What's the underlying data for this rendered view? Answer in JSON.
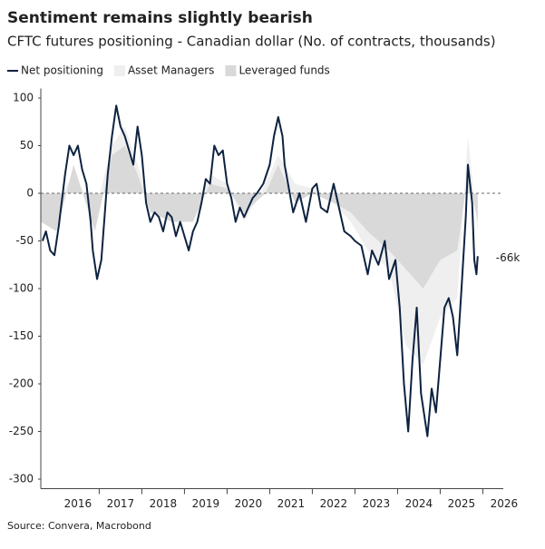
{
  "chart_data": {
    "type": "line",
    "title": "Sentiment remains slightly bearish",
    "subtitle": "CFTC futures positioning - Canadian dollar (No. of contracts, thousands)",
    "source": "Source: Convera, Macrobond",
    "annotation": {
      "text": "-66k",
      "x": 2025.88,
      "y": -66
    },
    "reference_line": 0,
    "xlim": [
      2015.63,
      2026.48
    ],
    "ylim": [
      -310,
      110
    ],
    "yticks": [
      100,
      50,
      0,
      -50,
      -100,
      -150,
      -200,
      -250,
      -300
    ],
    "xticks": [
      {
        "value": 2016.5,
        "label": "2016"
      },
      {
        "value": 2017.5,
        "label": "2017"
      },
      {
        "value": 2018.5,
        "label": "2018"
      },
      {
        "value": 2019.5,
        "label": "2019"
      },
      {
        "value": 2020.5,
        "label": "2020"
      },
      {
        "value": 2021.5,
        "label": "2021"
      },
      {
        "value": 2022.5,
        "label": "2022"
      },
      {
        "value": 2023.5,
        "label": "2023"
      },
      {
        "value": 2024.5,
        "label": "2024"
      },
      {
        "value": 2025.5,
        "label": "2025"
      },
      {
        "value": 2026.5,
        "label": "2026"
      }
    ],
    "series": [
      {
        "name": "Asset Managers",
        "kind": "area",
        "color": "#efefef",
        "x": [
          2015.63,
          2016.0,
          2016.4,
          2016.9,
          2017.3,
          2017.6,
          2017.9,
          2018.2,
          2018.7,
          2019.2,
          2019.6,
          2020.0,
          2020.4,
          2020.9,
          2021.2,
          2021.6,
          2022.0,
          2022.5,
          2022.9,
          2023.3,
          2023.8,
          2024.2,
          2024.6,
          2025.0,
          2025.4,
          2025.65,
          2025.88
        ],
        "values": [
          -20,
          -10,
          20,
          -20,
          50,
          70,
          30,
          -10,
          0,
          -20,
          20,
          10,
          -30,
          10,
          40,
          10,
          5,
          -10,
          -30,
          -60,
          -80,
          -160,
          -180,
          -130,
          -110,
          60,
          -40
        ]
      },
      {
        "name": "Leveraged funds",
        "kind": "area",
        "color": "#d9d9d9",
        "x": [
          2015.63,
          2016.0,
          2016.4,
          2016.9,
          2017.3,
          2017.6,
          2017.9,
          2018.2,
          2018.7,
          2019.2,
          2019.6,
          2020.0,
          2020.4,
          2020.9,
          2021.2,
          2021.6,
          2022.0,
          2022.5,
          2022.9,
          2023.3,
          2023.8,
          2024.2,
          2024.6,
          2025.0,
          2025.4,
          2025.65,
          2025.88
        ],
        "values": [
          -30,
          -40,
          30,
          -40,
          40,
          50,
          20,
          -20,
          -30,
          -30,
          10,
          5,
          -20,
          0,
          30,
          -10,
          0,
          -10,
          -20,
          -40,
          -60,
          -80,
          -100,
          -70,
          -60,
          20,
          -30
        ]
      },
      {
        "name": "Net positioning",
        "kind": "line",
        "color": "#0d2240",
        "x": [
          2015.67,
          2015.75,
          2015.85,
          2015.95,
          2016.05,
          2016.2,
          2016.3,
          2016.4,
          2016.5,
          2016.6,
          2016.7,
          2016.8,
          2016.85,
          2016.95,
          2017.05,
          2017.2,
          2017.3,
          2017.4,
          2017.5,
          2017.6,
          2017.7,
          2017.8,
          2017.9,
          2018.0,
          2018.1,
          2018.2,
          2018.3,
          2018.4,
          2018.5,
          2018.6,
          2018.7,
          2018.8,
          2018.9,
          2019.0,
          2019.1,
          2019.2,
          2019.3,
          2019.4,
          2019.5,
          2019.6,
          2019.7,
          2019.8,
          2019.9,
          2020.0,
          2020.1,
          2020.2,
          2020.3,
          2020.4,
          2020.5,
          2020.6,
          2020.7,
          2020.85,
          2021.0,
          2021.1,
          2021.2,
          2021.3,
          2021.35,
          2021.45,
          2021.55,
          2021.7,
          2021.85,
          2022.0,
          2022.1,
          2022.2,
          2022.35,
          2022.5,
          2022.6,
          2022.75,
          2022.9,
          2023.0,
          2023.15,
          2023.3,
          2023.4,
          2023.55,
          2023.7,
          2023.8,
          2023.95,
          2024.05,
          2024.15,
          2024.25,
          2024.35,
          2024.45,
          2024.55,
          2024.7,
          2024.8,
          2024.9,
          2025.0,
          2025.1,
          2025.2,
          2025.3,
          2025.4,
          2025.5,
          2025.6,
          2025.65,
          2025.75,
          2025.8,
          2025.85,
          2025.88
        ],
        "values": [
          -50,
          -40,
          -60,
          -65,
          -35,
          20,
          50,
          40,
          50,
          25,
          10,
          -30,
          -60,
          -90,
          -70,
          20,
          60,
          92,
          70,
          60,
          45,
          30,
          70,
          40,
          -10,
          -30,
          -20,
          -25,
          -40,
          -20,
          -25,
          -45,
          -30,
          -45,
          -60,
          -40,
          -30,
          -10,
          15,
          10,
          50,
          40,
          45,
          10,
          -5,
          -30,
          -15,
          -25,
          -15,
          -5,
          0,
          10,
          30,
          60,
          80,
          60,
          30,
          5,
          -20,
          0,
          -30,
          5,
          10,
          -15,
          -20,
          10,
          -10,
          -40,
          -45,
          -50,
          -55,
          -85,
          -60,
          -75,
          -50,
          -90,
          -70,
          -120,
          -200,
          -250,
          -175,
          -120,
          -210,
          -255,
          -205,
          -230,
          -175,
          -120,
          -110,
          -130,
          -170,
          -100,
          -25,
          30,
          -10,
          -70,
          -85,
          -66
        ]
      }
    ]
  }
}
